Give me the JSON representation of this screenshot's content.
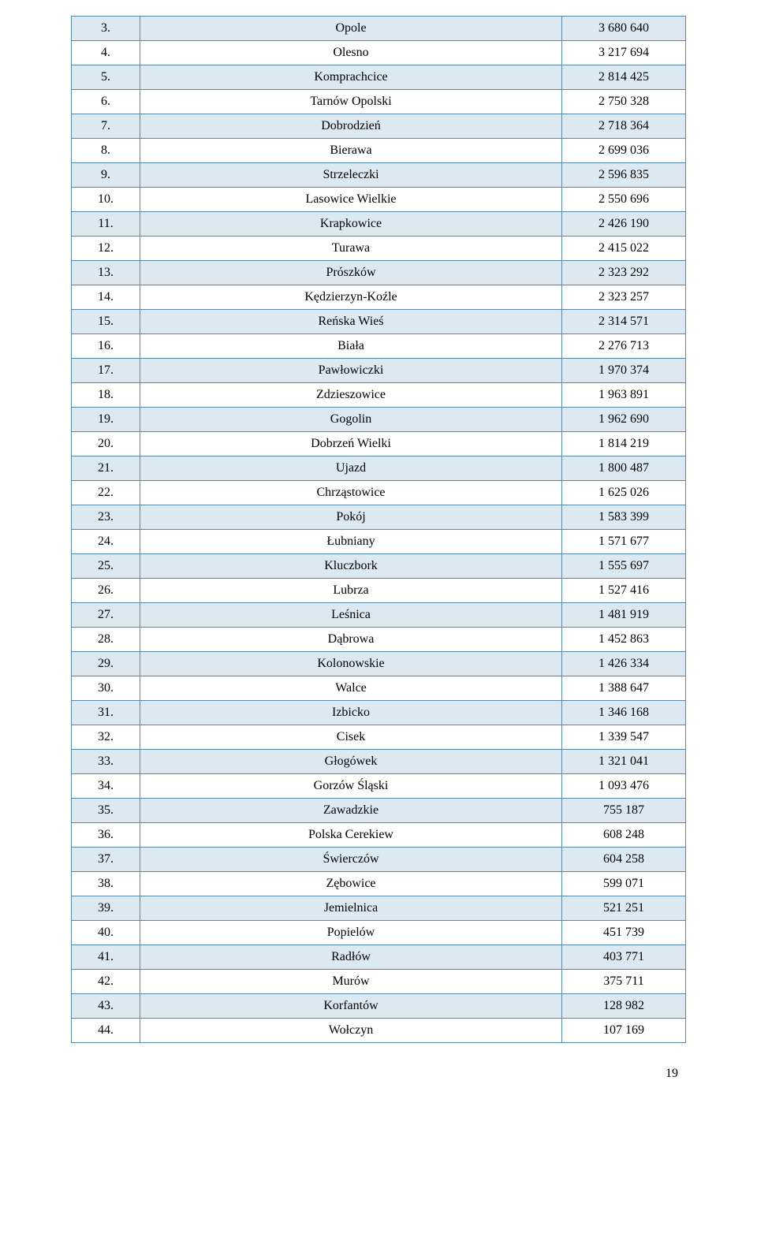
{
  "table": {
    "row_odd_bg": "#dde9f1",
    "row_even_bg": "#ffffff",
    "border_color": "#5b87a6",
    "font_family": "Times New Roman",
    "font_size_pt": 12,
    "columns": [
      "index",
      "name",
      "value"
    ],
    "rows": [
      {
        "n": "3.",
        "name": "Opole",
        "val": "3 680 640"
      },
      {
        "n": "4.",
        "name": "Olesno",
        "val": "3 217 694"
      },
      {
        "n": "5.",
        "name": "Komprachcice",
        "val": "2 814 425"
      },
      {
        "n": "6.",
        "name": "Tarnów Opolski",
        "val": "2 750 328"
      },
      {
        "n": "7.",
        "name": "Dobrodzień",
        "val": "2 718 364"
      },
      {
        "n": "8.",
        "name": "Bierawa",
        "val": "2 699 036"
      },
      {
        "n": "9.",
        "name": "Strzeleczki",
        "val": "2 596 835"
      },
      {
        "n": "10.",
        "name": "Lasowice Wielkie",
        "val": "2 550 696"
      },
      {
        "n": "11.",
        "name": "Krapkowice",
        "val": "2 426 190"
      },
      {
        "n": "12.",
        "name": "Turawa",
        "val": "2 415 022"
      },
      {
        "n": "13.",
        "name": "Prószków",
        "val": "2 323 292"
      },
      {
        "n": "14.",
        "name": "Kędzierzyn-Koźle",
        "val": "2 323 257"
      },
      {
        "n": "15.",
        "name": "Reńska Wieś",
        "val": "2 314 571"
      },
      {
        "n": "16.",
        "name": "Biała",
        "val": "2 276 713"
      },
      {
        "n": "17.",
        "name": "Pawłowiczki",
        "val": "1 970 374"
      },
      {
        "n": "18.",
        "name": "Zdzieszowice",
        "val": "1 963 891"
      },
      {
        "n": "19.",
        "name": "Gogolin",
        "val": "1 962 690"
      },
      {
        "n": "20.",
        "name": "Dobrzeń Wielki",
        "val": "1 814 219"
      },
      {
        "n": "21.",
        "name": "Ujazd",
        "val": "1 800 487"
      },
      {
        "n": "22.",
        "name": "Chrząstowice",
        "val": "1 625 026"
      },
      {
        "n": "23.",
        "name": "Pokój",
        "val": "1 583 399"
      },
      {
        "n": "24.",
        "name": "Łubniany",
        "val": "1 571 677"
      },
      {
        "n": "25.",
        "name": "Kluczbork",
        "val": "1 555 697"
      },
      {
        "n": "26.",
        "name": "Lubrza",
        "val": "1 527 416"
      },
      {
        "n": "27.",
        "name": "Leśnica",
        "val": "1 481 919"
      },
      {
        "n": "28.",
        "name": "Dąbrowa",
        "val": "1 452 863"
      },
      {
        "n": "29.",
        "name": "Kolonowskie",
        "val": "1 426 334"
      },
      {
        "n": "30.",
        "name": "Walce",
        "val": "1 388 647"
      },
      {
        "n": "31.",
        "name": "Izbicko",
        "val": "1 346 168"
      },
      {
        "n": "32.",
        "name": "Cisek",
        "val": "1 339 547"
      },
      {
        "n": "33.",
        "name": "Głogówek",
        "val": "1 321 041"
      },
      {
        "n": "34.",
        "name": "Gorzów Śląski",
        "val": "1 093 476"
      },
      {
        "n": "35.",
        "name": "Zawadzkie",
        "val": "755 187"
      },
      {
        "n": "36.",
        "name": "Polska Cerekiew",
        "val": "608 248"
      },
      {
        "n": "37.",
        "name": "Świerczów",
        "val": "604 258"
      },
      {
        "n": "38.",
        "name": "Zębowice",
        "val": "599 071"
      },
      {
        "n": "39.",
        "name": "Jemielnica",
        "val": "521 251"
      },
      {
        "n": "40.",
        "name": "Popielów",
        "val": "451 739"
      },
      {
        "n": "41.",
        "name": "Radłów",
        "val": "403 771"
      },
      {
        "n": "42.",
        "name": "Murów",
        "val": "375 711"
      },
      {
        "n": "43.",
        "name": "Korfantów",
        "val": "128 982"
      },
      {
        "n": "44.",
        "name": "Wołczyn",
        "val": "107 169"
      }
    ]
  },
  "page_number": "19"
}
